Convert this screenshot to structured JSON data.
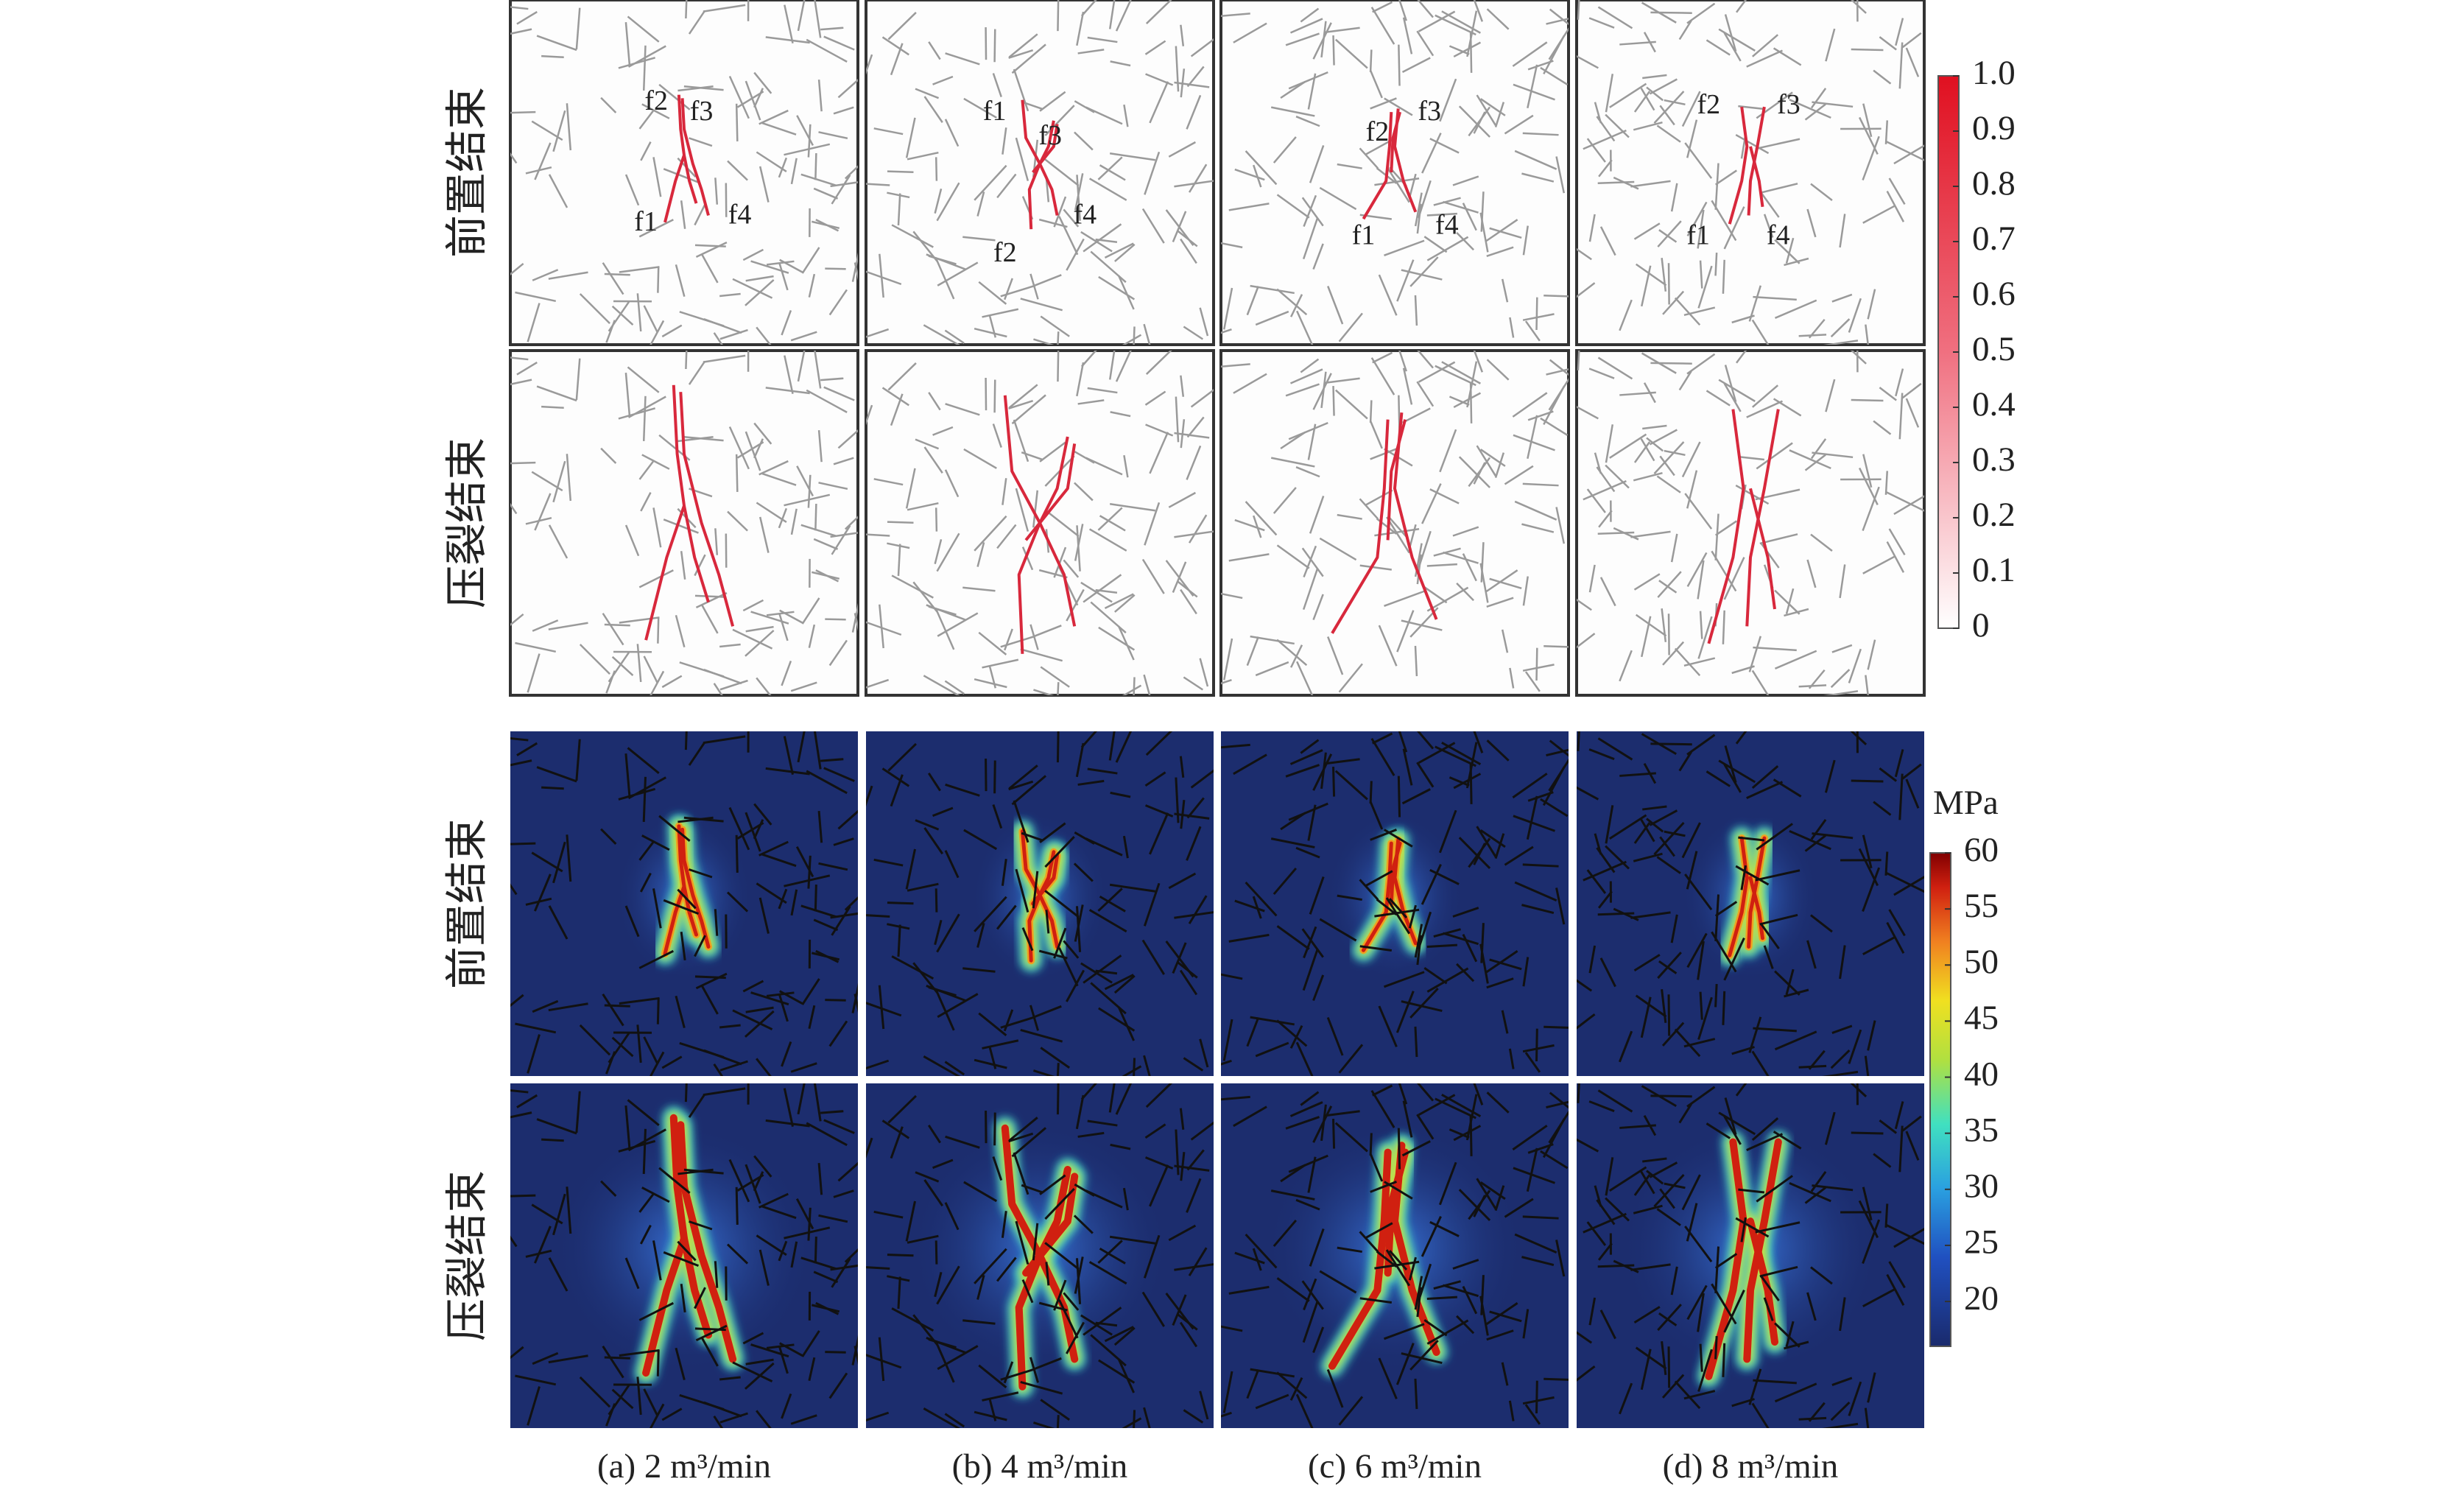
{
  "figure": {
    "row_labels": [
      "前置结束",
      "压裂结束",
      "前置结束",
      "压裂结束"
    ],
    "captions": [
      "(a) 2 m³/min",
      "(b) 4 m³/min",
      "(c) 6 m³/min",
      "(d) 8 m³/min"
    ],
    "fracture_labels": [
      [
        "f2",
        "f3",
        "f1",
        "f4"
      ],
      [
        "f1",
        "f3",
        "f4",
        "f2"
      ],
      [
        "f2",
        "f3",
        "f1",
        "f4"
      ],
      [
        "f2",
        "f3",
        "f1",
        "f4"
      ]
    ],
    "colorbar_top": {
      "range": [
        0,
        1
      ],
      "ticks": [
        0,
        0.1,
        0.2,
        0.3,
        0.4,
        0.5,
        0.6,
        0.7,
        0.8,
        0.9,
        {
          "value": 1,
          "label": "1.0"
        }
      ]
    },
    "colorbar_bottom": {
      "unit": "MPa",
      "range": [
        16,
        60
      ],
      "ticks": [
        20,
        25,
        30,
        35,
        40,
        45,
        50,
        55,
        60
      ]
    }
  }
}
